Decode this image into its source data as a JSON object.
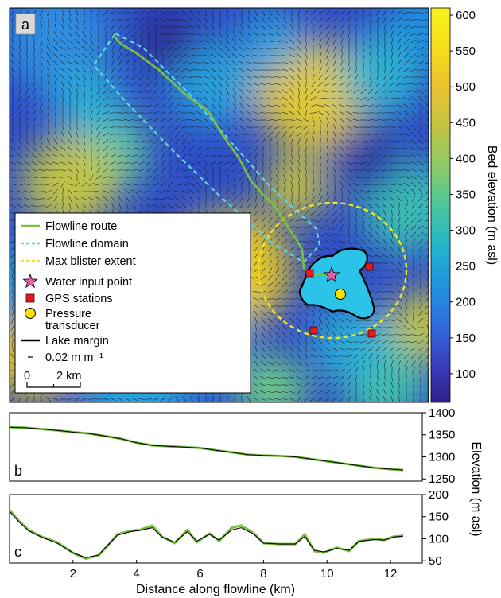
{
  "chart_data": [
    {
      "type": "heatmap",
      "panel_label": "a",
      "colorbar": {
        "label": "Bed elevation (m asl)",
        "ticks": [
          "600",
          "550",
          "500",
          "450",
          "400",
          "350",
          "300",
          "250",
          "200",
          "150",
          "100"
        ],
        "tick_values": [
          600,
          550,
          500,
          450,
          400,
          350,
          300,
          250,
          200,
          150,
          100
        ],
        "range": [
          60,
          610
        ],
        "colormap": [
          "#2d1f8a",
          "#3a3fc0",
          "#2f6fde",
          "#1e95e0",
          "#22b6c9",
          "#4bc79b",
          "#8ccb67",
          "#c3c43f",
          "#ecc230",
          "#f6de1a",
          "#f9f21b"
        ]
      },
      "legend": [
        {
          "label": "Flowline route",
          "symbol": "line",
          "color": "#7ac143"
        },
        {
          "label": "Flowline domain",
          "symbol": "dashed-line",
          "color": "#5ed3e0"
        },
        {
          "label": "Max blister extent",
          "symbol": "dashed-line",
          "color": "#f2e41d"
        },
        {
          "label": "Water input point",
          "symbol": "star",
          "color": "#e75ca7"
        },
        {
          "label": "GPS stations",
          "symbol": "square",
          "color": "#e01b22"
        },
        {
          "label": "Pressure transducer",
          "lines": [
            "Pressure",
            "transducer"
          ],
          "symbol": "circle",
          "color": "#ffe100"
        },
        {
          "label": "Lake margin",
          "symbol": "line",
          "color": "#000000"
        },
        {
          "label": "0.02 m m⁻¹",
          "symbol": "short-line",
          "color": "#000000"
        }
      ],
      "scale_bar": {
        "start_label": "0",
        "end_label": "2 km"
      }
    },
    {
      "type": "line",
      "panel_label": "b",
      "ylabel": "Elevation (m asl)",
      "ylim": [
        1245,
        1400
      ],
      "xlim": [
        0,
        13
      ],
      "yticks": [
        1400,
        1350,
        1300,
        1250
      ],
      "series": [
        {
          "color": "#7ac143",
          "x": [
            0,
            0.5,
            1,
            1.5,
            2,
            2.5,
            3,
            3.5,
            4,
            4.5,
            5,
            5.5,
            6,
            6.5,
            7,
            7.5,
            8,
            8.5,
            9,
            9.5,
            10,
            10.5,
            11,
            11.5,
            12,
            12.4
          ],
          "y": [
            1367,
            1366,
            1363,
            1360,
            1356,
            1353,
            1347,
            1341,
            1332,
            1326,
            1324,
            1322,
            1320,
            1315,
            1310,
            1305,
            1303,
            1302,
            1300,
            1295,
            1290,
            1285,
            1280,
            1275,
            1272,
            1270
          ]
        }
      ]
    },
    {
      "type": "line",
      "panel_label": "c",
      "xlabel": "Distance along flowline (km)",
      "ylim": [
        45,
        200
      ],
      "xlim": [
        0,
        13
      ],
      "xticks": [
        2,
        4,
        6,
        8,
        10,
        12
      ],
      "yticks": [
        200,
        150,
        100,
        50
      ],
      "series": [
        {
          "color": "#7ac143",
          "x": [
            0,
            0.3,
            0.6,
            1.0,
            1.5,
            2.0,
            2.4,
            2.8,
            3.1,
            3.4,
            3.8,
            4.1,
            4.5,
            4.8,
            5.2,
            5.6,
            5.9,
            6.3,
            6.6,
            7.0,
            7.3,
            7.7,
            8.0,
            8.5,
            9.0,
            9.3,
            9.6,
            9.9,
            10.3,
            10.7,
            11.0,
            11.5,
            11.8,
            12.1,
            12.4
          ],
          "y": [
            165,
            140,
            120,
            105,
            92,
            68,
            55,
            62,
            85,
            110,
            118,
            120,
            130,
            105,
            90,
            120,
            92,
            112,
            95,
            125,
            130,
            112,
            90,
            88,
            88,
            110,
            72,
            68,
            80,
            72,
            95,
            100,
            97,
            105,
            107
          ]
        },
        {
          "color": "#000000",
          "x": [
            0,
            0.3,
            0.6,
            1.0,
            1.5,
            2.0,
            2.4,
            2.8,
            3.1,
            3.4,
            3.8,
            4.1,
            4.5,
            4.8,
            5.2,
            5.6,
            5.9,
            6.3,
            6.6,
            7.0,
            7.3,
            7.7,
            8.0,
            8.5,
            9.0,
            9.3,
            9.6,
            9.9,
            10.3,
            10.7,
            11.0,
            11.5,
            11.8,
            12.1,
            12.4
          ],
          "y": [
            162,
            138,
            118,
            104,
            90,
            68,
            57,
            63,
            86,
            108,
            116,
            119,
            125,
            104,
            92,
            116,
            95,
            110,
            97,
            120,
            125,
            110,
            90,
            88,
            88,
            105,
            74,
            70,
            78,
            74,
            94,
            98,
            97,
            104,
            106
          ]
        }
      ]
    }
  ]
}
